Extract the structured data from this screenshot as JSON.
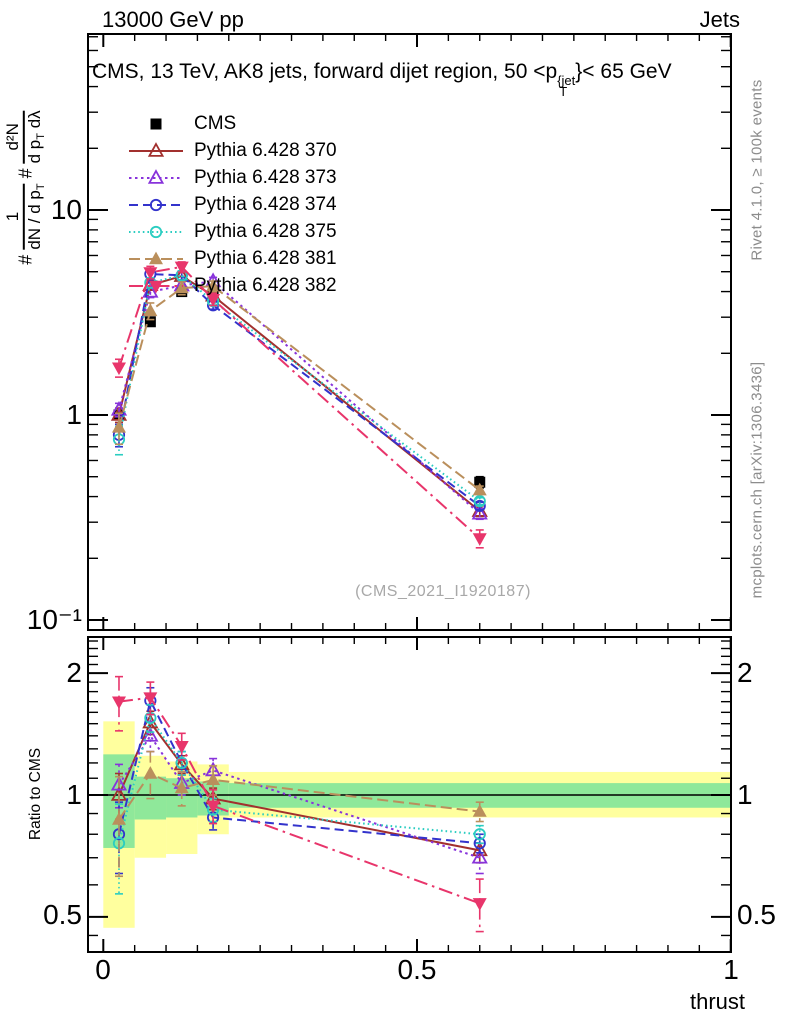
{
  "header": {
    "beam": "13000 GeV pp",
    "group": "Jets"
  },
  "title": {
    "a": "CMS, 13 TeV, AK8 jets, forward dijet region, 50 <p",
    "sup": "{jet",
    "sub": "T",
    "b": "}< 65 GeV"
  },
  "side_texts": {
    "rivet": "Rivet 4.1.0, ≥ 100k events",
    "mcplots": "mcplots.cern.ch [arXiv:1306.3436]"
  },
  "watermark": "(CMS_2021_I1920187)",
  "axes": {
    "x_label": "thrust",
    "x_ticks": [
      "0",
      "0.5",
      "1"
    ],
    "y_main_ticks": [
      "10",
      "1",
      "10⁻¹"
    ],
    "y_ratio_ticks": [
      "2",
      "1",
      "0.5"
    ],
    "ratio_label": "Ratio to CMS",
    "y_main_label": {
      "hash1": "#",
      "f1_num": "1",
      "f1_den_a": "dN / d p",
      "f1_den_sub": "T",
      "hash2": "#",
      "f2_num": "d²N",
      "f2_den_a": "d p",
      "f2_den_sub": "T",
      "f2_den_b": " dλ"
    }
  },
  "chart_data": {
    "type": "line",
    "title": "CMS, 13 TeV, AK8 jets, forward dijet region, 50 <p_T^{jet}< 65 GeV",
    "xlabel": "thrust",
    "ylabel_main": "(1/(dN/dp_T)) d²N/(dp_T dλ)",
    "ylabel_ratio": "Ratio to CMS",
    "x_scale": "linear",
    "y_scale": "log",
    "ratio_scale": "log",
    "x_range": [
      -0.024,
      1.0
    ],
    "y_main_range": [
      0.089,
      72
    ],
    "y_ratio_range": [
      0.41,
      2.45
    ],
    "legend_position": "top-left",
    "x": [
      0.025,
      0.075,
      0.125,
      0.175,
      0.6
    ],
    "series": [
      {
        "id": "cms",
        "label": "CMS",
        "color": "#000000",
        "marker": "square-filled",
        "line": "none",
        "y": [
          1.0,
          2.85,
          4.0,
          3.9,
          0.47
        ],
        "y_err": [
          0.05,
          0.12,
          0.15,
          0.15,
          0.03
        ]
      },
      {
        "id": "py370",
        "label": "Pythia 6.428 370",
        "color": "#A2302E",
        "marker": "triangle-up-open",
        "line": "solid",
        "y": [
          1.0,
          4.3,
          4.76,
          3.82,
          0.34
        ],
        "y_err": [
          0.08,
          0.2,
          0.2,
          0.15,
          0.02
        ],
        "ratio": [
          1.0,
          1.51,
          1.19,
          0.98,
          0.73
        ],
        "ratio_err": [
          0.13,
          0.1,
          0.06,
          0.06,
          0.05
        ]
      },
      {
        "id": "py373",
        "label": "Pythia 6.428 373",
        "color": "#8833DB",
        "marker": "triangle-up-open",
        "line": "dotted",
        "y": [
          1.06,
          3.99,
          4.28,
          4.49,
          0.33
        ],
        "y_err": [
          0.08,
          0.25,
          0.2,
          0.2,
          0.02
        ],
        "ratio": [
          1.06,
          1.4,
          1.07,
          1.15,
          0.7
        ],
        "ratio_err": [
          0.13,
          0.12,
          0.07,
          0.08,
          0.06
        ]
      },
      {
        "id": "py374",
        "label": "Pythia 6.428 374",
        "color": "#3333CC",
        "marker": "circle-open",
        "line": "dashed",
        "y": [
          0.8,
          4.87,
          4.8,
          3.43,
          0.36
        ],
        "y_err": [
          0.1,
          0.3,
          0.25,
          0.15,
          0.015
        ],
        "ratio": [
          0.8,
          1.71,
          1.2,
          0.88,
          0.76
        ],
        "ratio_err": [
          0.16,
          0.13,
          0.08,
          0.06,
          0.04
        ]
      },
      {
        "id": "py375",
        "label": "Pythia 6.428 375",
        "color": "#2BCDC1",
        "marker": "circle-open",
        "line": "fine-dotted",
        "y": [
          0.76,
          4.42,
          4.8,
          3.59,
          0.38
        ],
        "y_err": [
          0.12,
          0.25,
          0.25,
          0.15,
          0.015
        ],
        "ratio": [
          0.76,
          1.55,
          1.2,
          0.92,
          0.8
        ],
        "ratio_err": [
          0.19,
          0.12,
          0.08,
          0.06,
          0.04
        ]
      },
      {
        "id": "py381",
        "label": "Pythia 6.428 381",
        "color": "#BA8F5C",
        "marker": "triangle-up-filled",
        "line": "long-dash",
        "y": [
          0.87,
          3.22,
          4.16,
          4.25,
          0.43
        ],
        "y_err": [
          0.15,
          0.3,
          0.3,
          0.25,
          0.02
        ],
        "ratio": [
          0.87,
          1.13,
          1.04,
          1.09,
          0.91
        ],
        "ratio_err": [
          0.24,
          0.15,
          0.1,
          0.09,
          0.05
        ]
      },
      {
        "id": "py382",
        "label": "Pythia 6.428 382",
        "color": "#E8356B",
        "marker": "triangle-down-filled",
        "line": "dash-dot",
        "y": [
          1.7,
          4.96,
          5.28,
          3.67,
          0.25
        ],
        "y_err": [
          0.17,
          0.35,
          0.3,
          0.25,
          0.025
        ],
        "ratio": [
          1.7,
          1.74,
          1.32,
          0.94,
          0.54
        ],
        "ratio_err": [
          0.26,
          0.16,
          0.1,
          0.09,
          0.08
        ]
      }
    ],
    "bands": [
      {
        "x0": 0.0,
        "x1": 0.05,
        "yellow": [
          0.47,
          1.52
        ],
        "green": [
          0.74,
          1.26
        ]
      },
      {
        "x0": 0.05,
        "x1": 0.1,
        "yellow": [
          0.7,
          1.25
        ],
        "green": [
          0.87,
          1.11
        ]
      },
      {
        "x0": 0.1,
        "x1": 0.15,
        "yellow": [
          0.715,
          1.21
        ],
        "green": [
          0.88,
          1.1
        ]
      },
      {
        "x0": 0.15,
        "x1": 0.2,
        "yellow": [
          0.8,
          1.19
        ],
        "green": [
          0.89,
          1.08
        ]
      },
      {
        "x0": 0.2,
        "x1": 1.0,
        "yellow": [
          0.88,
          1.14
        ],
        "green": [
          0.93,
          1.07
        ]
      }
    ],
    "band_colors": {
      "outer": "#FFFF9E",
      "inner": "#8FE89A"
    }
  }
}
